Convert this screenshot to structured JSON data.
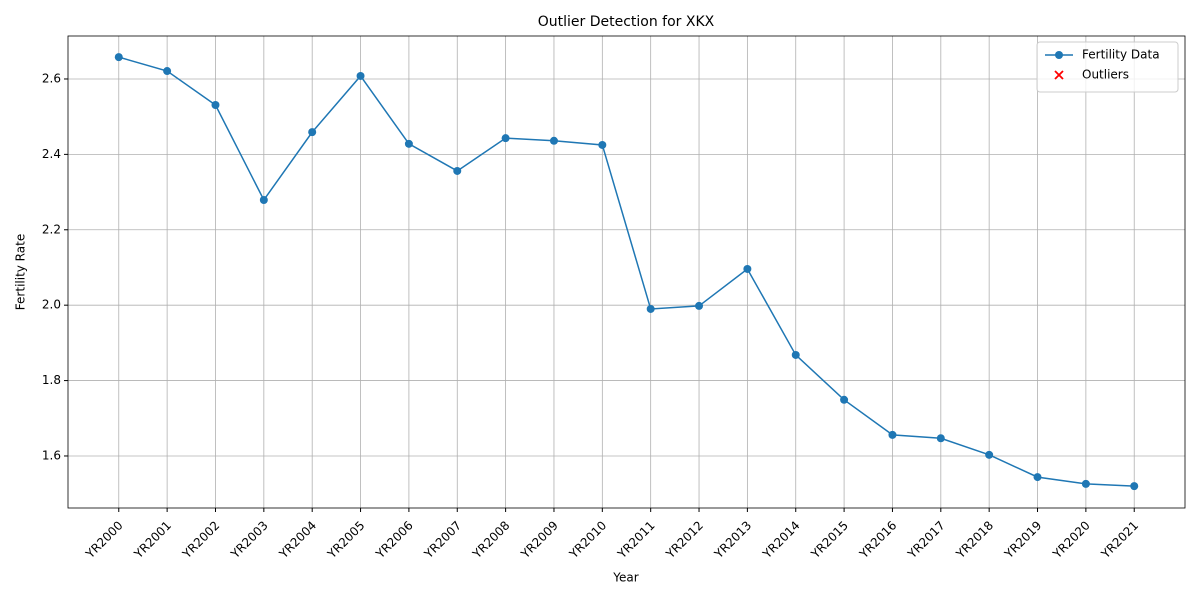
{
  "chart_data": {
    "type": "line",
    "title": "Outlier Detection for XKX",
    "xlabel": "Year",
    "ylabel": "Fertility Rate",
    "categories": [
      "YR2000",
      "YR2001",
      "YR2002",
      "YR2003",
      "YR2004",
      "YR2005",
      "YR2006",
      "YR2007",
      "YR2008",
      "YR2009",
      "YR2010",
      "YR2011",
      "YR2012",
      "YR2013",
      "YR2014",
      "YR2015",
      "YR2016",
      "YR2017",
      "YR2018",
      "YR2019",
      "YR2020",
      "YR2021"
    ],
    "series": [
      {
        "name": "Fertility Data",
        "color": "#1f77b4",
        "values": [
          2.658,
          2.621,
          2.531,
          2.279,
          2.459,
          2.608,
          2.428,
          2.356,
          2.443,
          2.436,
          2.425,
          1.99,
          1.998,
          2.096,
          1.868,
          1.749,
          1.656,
          1.647,
          1.603,
          1.544,
          1.526,
          1.52
        ]
      },
      {
        "name": "Outliers",
        "color": "#ff0000",
        "values": [
          null,
          null,
          null,
          null,
          null,
          null,
          null,
          null,
          null,
          null,
          null,
          null,
          null,
          null,
          null,
          null,
          null,
          null,
          null,
          null,
          null,
          null
        ]
      }
    ],
    "ylim": [
      1.462,
      2.714
    ],
    "yticks": [
      1.6,
      1.8,
      {
        "value": 2,
        "label": "2.0"
      },
      2.2,
      2.4,
      2.6
    ],
    "grid": true,
    "legend": "upper right"
  }
}
